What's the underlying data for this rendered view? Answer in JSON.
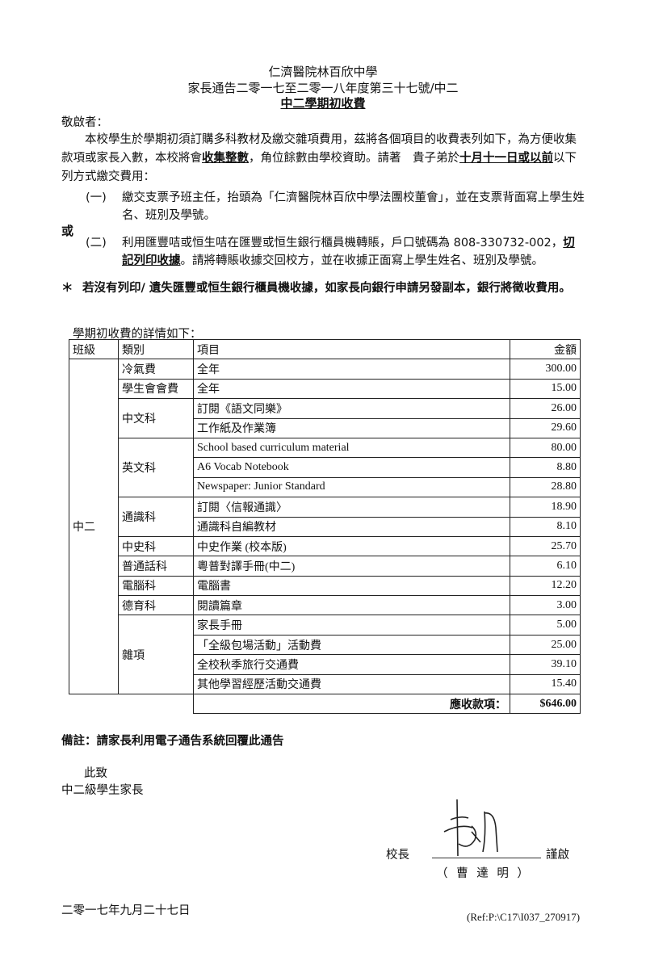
{
  "header": {
    "school": "仁濟醫院林百欣中學",
    "notice_no": "家長通告二零一七至二零一八年度第三十七號/中二",
    "subject": "中二學期初收費"
  },
  "salutation": "敬啟者：",
  "intro": {
    "part1": "本校學生於學期初須訂購多科教材及繳交雜項費用，茲將各個項目的收費表列如下，為方便收集款項或家長入數，本校將會",
    "bold1": "收集整數",
    "part2": "，角位餘數由學校資助。請著　貴子弟於",
    "bold2": "十月十一日或以前",
    "part3": "以下列方式繳交費用："
  },
  "options": [
    {
      "num": "(一)",
      "text": "繳交支票予班主任，抬頭為「仁濟醫院林百欣中學法團校董會」，並在支票背面寫上學生姓名、班別及學號。"
    },
    {
      "num": "(二)",
      "text": "利用匯豐咭或恒生咭在匯豐或恒生銀行櫃員機轉賬，戶口號碼為 808-330732-002，",
      "bold": "切記列印收據",
      "text2": "。請將轉賬收據交回校方，並在收據正面寫上學生姓名、班別及學號。"
    }
  ],
  "or_label": "或",
  "note_star": "＊",
  "note": "若沒有列印/ 遺失匯豐或恒生銀行櫃員機收據，如家長向銀行申請另發副本，銀行將徵收費用。",
  "table_caption": "學期初收費的詳情如下：",
  "table": {
    "headers": [
      "班級",
      "類別",
      "項目",
      "金額"
    ],
    "class_label": "中二",
    "groups": [
      {
        "category": "冷氣費",
        "items": [
          {
            "item": "全年",
            "amount": "300.00"
          }
        ]
      },
      {
        "category": "學生會會費",
        "items": [
          {
            "item": "全年",
            "amount": "15.00"
          }
        ]
      },
      {
        "category": "中文科",
        "items": [
          {
            "item": "訂閱《語文同樂》",
            "amount": "26.00"
          },
          {
            "item": "工作紙及作業簿",
            "amount": "29.60"
          }
        ]
      },
      {
        "category": "英文科",
        "items": [
          {
            "item": "School based curriculum material",
            "amount": "80.00"
          },
          {
            "item": "A6 Vocab Notebook",
            "amount": "8.80"
          },
          {
            "item": "Newspaper: Junior Standard",
            "amount": "28.80"
          }
        ]
      },
      {
        "category": "通識科",
        "items": [
          {
            "item": "訂閱〈信報通識〉",
            "amount": "18.90"
          },
          {
            "item": "通識科自編教材",
            "amount": "8.10"
          }
        ]
      },
      {
        "category": "中史科",
        "items": [
          {
            "item": "中史作業 (校本版)",
            "amount": "25.70"
          }
        ]
      },
      {
        "category": "普通話科",
        "items": [
          {
            "item": "粵普對譯手冊(中二)",
            "amount": "6.10"
          }
        ]
      },
      {
        "category": "電腦科",
        "items": [
          {
            "item": "電腦書",
            "amount": "12.20"
          }
        ]
      },
      {
        "category": "德育科",
        "items": [
          {
            "item": "閱讀篇章",
            "amount": "3.00"
          }
        ]
      },
      {
        "category": "雜項",
        "items": [
          {
            "item": "家長手冊",
            "amount": "5.00"
          },
          {
            "item": "「全級包場活動」活動費",
            "amount": "25.00"
          },
          {
            "item": "全校秋季旅行交通費",
            "amount": "39.10"
          },
          {
            "item": "其他學習經歷活動交通費",
            "amount": "15.40"
          }
        ]
      }
    ],
    "total_label": "應收款項：",
    "total_amount": "$646.00"
  },
  "remark": "備註：請家長利用電子通告系統回覆此通告",
  "closing": "此致",
  "recipient": "中二級學生家長",
  "signature": {
    "title": "校長",
    "respect": "謹啟",
    "name": "（ 曹 達 明 ）"
  },
  "date": "二零一七年九月二十七日",
  "ref": "(Ref:P:\\C17\\I037_270917)"
}
